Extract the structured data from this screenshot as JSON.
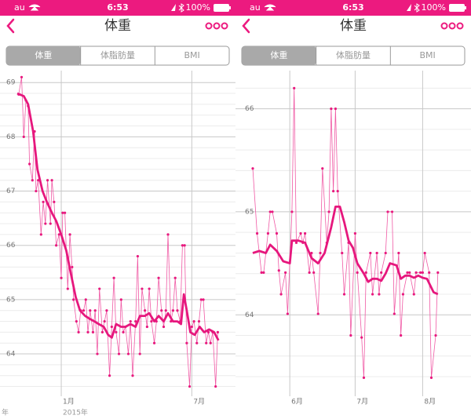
{
  "screens": [
    {
      "status_bar": {
        "carrier": "au",
        "time": "6:53",
        "battery": "100%"
      },
      "nav": {
        "title": "体重"
      },
      "tabs": [
        "体重",
        "体脂肪量",
        "BMI"
      ],
      "selected_tab": 0,
      "chart": {
        "type": "line",
        "xlim": [
          -61,
          222
        ],
        "xticks": [
          {
            "value": 0,
            "label": "1月"
          },
          {
            "value": 181,
            "label": "7月"
          }
        ],
        "year_ticks": [
          {
            "value": -85,
            "label": "年"
          },
          {
            "value": 0,
            "label": "2015年"
          }
        ],
        "ylim": [
          63.22,
          69.22
        ],
        "yticks": [
          64,
          65,
          66,
          67,
          68,
          69
        ],
        "minor_yticks": [
          63.4,
          63.6,
          63.8,
          64.2,
          64.4,
          64.6,
          64.8,
          65.2,
          65.4,
          65.6,
          65.8,
          66.2,
          66.4,
          66.6,
          66.8,
          67.2,
          67.4,
          67.6,
          67.8,
          68.2,
          68.4,
          68.6,
          68.8
        ],
        "grid": true,
        "series": [
          {
            "color": "#f05aa5",
            "markers": true,
            "x": [
              -59,
              -55,
              -52,
              -49,
              -46,
              -44,
              -40,
              -37,
              -35,
              -32,
              -28,
              -25,
              -22,
              -19,
              -15,
              -13,
              -10,
              -7,
              -3,
              0,
              2,
              5,
              9,
              12,
              15,
              17,
              21,
              24,
              27,
              31,
              34,
              37,
              40,
              44,
              47,
              50,
              53,
              57,
              60,
              63,
              67,
              70,
              73,
              76,
              80,
              83,
              86,
              89,
              93,
              96,
              99,
              103,
              106,
              109,
              112,
              116,
              119,
              122,
              125,
              129,
              132,
              135,
              139,
              142,
              145,
              148,
              152,
              155,
              158,
              161,
              165,
              168,
              171,
              174,
              178,
              181,
              184,
              188,
              191,
              194,
              197,
              201,
              204,
              207,
              210,
              214,
              217
            ],
            "values": [
              68.78,
              69.1,
              68.0,
              68.67,
              68.57,
              67.5,
              67.2,
              68.1,
              67.0,
              67.2,
              66.2,
              66.8,
              66.4,
              67.2,
              66.4,
              67.2,
              66.8,
              66.0,
              66.2,
              65.4,
              66.6,
              66.6,
              65.2,
              66.2,
              65.6,
              65.0,
              64.6,
              64.4,
              64.8,
              64.8,
              65.0,
              64.4,
              64.8,
              64.4,
              64.8,
              64.0,
              65.2,
              64.4,
              64.6,
              64.8,
              63.6,
              64.5,
              65.4,
              64.4,
              64.0,
              65.0,
              64.4,
              64.5,
              64.0,
              64.6,
              63.6,
              64.6,
              65.8,
              64.0,
              65.2,
              64.8,
              64.5,
              65.2,
              64.6,
              64.2,
              64.6,
              65.4,
              64.8,
              64.5,
              64.8,
              66.2,
              64.6,
              64.8,
              65.4,
              64.8,
              64.6,
              66.0,
              66.0,
              64.2,
              63.4,
              64.5,
              64.6,
              64.2,
              64.6,
              65.0,
              65.0,
              64.2,
              64.4,
              64.2,
              64.4,
              63.4,
              64.4
            ]
          },
          {
            "color": "#e6177d",
            "markers": false,
            "x": [
              -61,
              -52,
              -46,
              -39,
              -33,
              -26,
              -20,
              -13,
              -7,
              0,
              7,
              13,
              20,
              26,
              33,
              39,
              46,
              52,
              59,
              65,
              70,
              76,
              83,
              89,
              96,
              103,
              109,
              116,
              122,
              129,
              135,
              142,
              148,
              155,
              161,
              166,
              170,
              174,
              179,
              185,
              192,
              198,
              205,
              212,
              218
            ],
            "values": [
              68.8,
              68.75,
              68.6,
              68.1,
              67.4,
              67.0,
              66.8,
              66.6,
              66.45,
              66.2,
              65.9,
              65.5,
              65.05,
              64.8,
              64.7,
              64.65,
              64.6,
              64.55,
              64.5,
              64.35,
              64.3,
              64.55,
              64.5,
              64.5,
              64.55,
              64.5,
              64.7,
              64.7,
              64.75,
              64.6,
              64.7,
              64.6,
              64.75,
              64.6,
              64.6,
              64.55,
              65.1,
              64.8,
              64.4,
              64.35,
              64.5,
              64.4,
              64.45,
              64.4,
              64.25
            ]
          }
        ]
      }
    },
    {
      "status_bar": {
        "carrier": "au",
        "time": "6:53",
        "battery": "100%"
      },
      "nav": {
        "title": "体重"
      },
      "tabs": [
        "体重",
        "体脂肪量",
        "BMI"
      ],
      "selected_tab": 0,
      "chart": {
        "type": "line",
        "xlim": [
          134,
          227
        ],
        "xticks": [
          {
            "value": 151,
            "label": "6月"
          },
          {
            "value": 181,
            "label": "7月"
          },
          {
            "value": 212,
            "label": "8月"
          }
        ],
        "ylim": [
          63.21,
          66.37
        ],
        "yticks": [
          64,
          65,
          66
        ],
        "minor_yticks": [
          63.4,
          63.6,
          63.8,
          64.2,
          64.4,
          64.6,
          64.8,
          65.2,
          65.4,
          65.6,
          65.8,
          66.2
        ],
        "grid": true,
        "series": [
          {
            "color": "#f05aa5",
            "markers": true,
            "x": [
              134,
              136,
              138,
              139,
              141,
              142,
              143,
              145,
              146,
              147,
              149,
              150,
              152,
              153,
              154,
              156,
              157,
              158,
              160,
              161,
              162,
              164,
              165,
              166,
              168,
              169,
              170,
              171,
              172,
              173,
              175,
              176,
              178,
              179,
              181,
              182,
              184,
              185,
              186,
              188,
              189,
              191,
              192,
              193,
              195,
              196,
              198,
              199,
              201,
              202,
              203,
              205,
              206,
              208,
              209,
              211,
              212,
              213,
              215,
              216,
              218,
              219
            ],
            "values": [
              65.42,
              64.79,
              64.41,
              64.41,
              64.79,
              65.0,
              65.0,
              64.79,
              64.43,
              64.2,
              64.41,
              64.01,
              65.0,
              66.2,
              64.7,
              64.79,
              64.7,
              64.79,
              64.41,
              64.6,
              64.41,
              64.01,
              64.6,
              65.42,
              64.7,
              65.0,
              66.0,
              65.2,
              66.0,
              65.2,
              64.6,
              64.2,
              64.7,
              63.8,
              64.79,
              64.41,
              63.78,
              63.39,
              64.41,
              64.6,
              64.2,
              64.6,
              64.2,
              64.41,
              64.6,
              65.0,
              65.0,
              64.01,
              64.6,
              63.8,
              64.2,
              64.41,
              64.41,
              64.2,
              64.41,
              64.41,
              64.41,
              64.6,
              64.41,
              63.39,
              63.8,
              64.41
            ]
          },
          {
            "color": "#e6177d",
            "markers": false,
            "x": [
              134,
              137,
              140,
              142,
              145,
              148,
              151,
              152,
              155,
              158,
              161,
              164,
              167,
              170,
              172,
              174,
              176,
              178,
              180,
              182,
              185,
              187,
              189,
              191,
              193,
              195,
              197,
              200,
              202,
              204,
              206,
              208,
              210,
              212,
              214,
              217,
              219
            ],
            "values": [
              64.6,
              64.62,
              64.6,
              64.68,
              64.62,
              64.52,
              64.5,
              64.72,
              64.72,
              64.7,
              64.55,
              64.5,
              64.6,
              64.85,
              65.05,
              65.05,
              64.9,
              64.72,
              64.65,
              64.5,
              64.4,
              64.32,
              64.35,
              64.35,
              64.33,
              64.4,
              64.5,
              64.48,
              64.35,
              64.38,
              64.38,
              64.36,
              64.38,
              64.36,
              64.35,
              64.22,
              64.2
            ]
          }
        ]
      }
    }
  ]
}
